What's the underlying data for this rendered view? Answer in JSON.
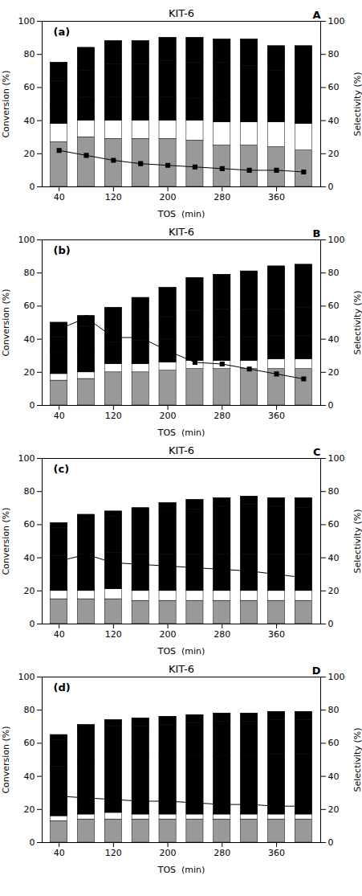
{
  "chart_data": [
    {
      "type": "bar",
      "stacked": true,
      "grid": false,
      "title": "KIT-6",
      "xlabel": "TOS  (min)",
      "ylabel": "Conversion (%)",
      "y2label": "Selectivity (%)",
      "annotations": [
        "(a)",
        "A"
      ],
      "x": [
        40,
        80,
        120,
        160,
        200,
        240,
        280,
        320,
        360,
        400
      ],
      "xlim": [
        15,
        425
      ],
      "xticks": [
        40,
        120,
        200,
        280,
        360
      ],
      "ylim": [
        0,
        100
      ],
      "yticks": [
        0,
        20,
        40,
        60,
        80,
        100
      ],
      "y2lim": [
        0,
        100
      ],
      "y2ticks": [
        0,
        20,
        40,
        60,
        80,
        100
      ],
      "series": [
        {
          "color": "#999999",
          "values": [
            27,
            30,
            29,
            29,
            29,
            28,
            25,
            25,
            24,
            22
          ]
        },
        {
          "color": "#ffffff",
          "values": [
            11,
            10,
            11,
            11,
            11,
            12,
            14,
            14,
            15,
            16
          ]
        },
        {
          "color": "#cccccc",
          "values": [
            12,
            14,
            14,
            14,
            14,
            13,
            13,
            12,
            11,
            11
          ]
        },
        {
          "color": "#d8d8d8",
          "values": [
            14,
            16,
            20,
            20,
            22,
            22,
            23,
            22,
            20,
            18
          ]
        },
        {
          "color": "#e0e0e0",
          "values": [
            11,
            14,
            14,
            14,
            14,
            15,
            14,
            16,
            15,
            18
          ]
        },
        {
          "type": "line",
          "axis": "y2",
          "color": "black",
          "marker": "square",
          "line_style": "solid",
          "values": [
            22,
            19,
            16,
            14,
            13,
            12,
            11,
            10,
            10,
            9
          ]
        }
      ]
    },
    {
      "type": "bar",
      "stacked": true,
      "grid": false,
      "title": "KIT-6",
      "xlabel": "TOS  (min)",
      "ylabel": "Conversion (%)",
      "y2label": "Selectivity (%)",
      "annotations": [
        "(b)",
        "B"
      ],
      "x": [
        40,
        80,
        120,
        160,
        200,
        240,
        280,
        320,
        360,
        400
      ],
      "xlim": [
        15,
        425
      ],
      "xticks": [
        40,
        120,
        200,
        280,
        360
      ],
      "ylim": [
        0,
        100
      ],
      "yticks": [
        0,
        20,
        40,
        60,
        80,
        100
      ],
      "y2lim": [
        0,
        100
      ],
      "y2ticks": [
        0,
        20,
        40,
        60,
        80,
        100
      ],
      "series": [
        {
          "color": "#999999",
          "values": [
            15,
            16,
            20,
            20,
            21,
            22,
            22,
            22,
            22,
            22
          ]
        },
        {
          "color": "#ffffff",
          "values": [
            4,
            4,
            5,
            5,
            5,
            5,
            5,
            5,
            6,
            6
          ]
        },
        {
          "color": "#cccccc",
          "values": [
            13,
            14,
            13,
            14,
            14,
            14,
            14,
            14,
            14,
            14
          ]
        },
        {
          "color": "#d8d8d8",
          "values": [
            9,
            14,
            12,
            11,
            13,
            16,
            17,
            17,
            16,
            17
          ]
        },
        {
          "color": "#e0e0e0",
          "values": [
            9,
            6,
            9,
            15,
            18,
            20,
            21,
            23,
            26,
            26
          ]
        },
        {
          "type": "line",
          "axis": "y2",
          "color": "black",
          "marker": "square",
          "line_style": "solid",
          "values": [
            46,
            53,
            41,
            41,
            33,
            26,
            25,
            22,
            19,
            16
          ]
        }
      ]
    },
    {
      "type": "bar",
      "stacked": true,
      "grid": false,
      "title": "KIT-6",
      "xlabel": "TOS  (min)",
      "ylabel": "Conversion (%)",
      "y2label": "Selectivity (%)",
      "annotations": [
        "(c)",
        "C"
      ],
      "x": [
        40,
        80,
        120,
        160,
        200,
        240,
        280,
        320,
        360,
        400
      ],
      "xlim": [
        15,
        425
      ],
      "xticks": [
        40,
        120,
        200,
        280,
        360
      ],
      "ylim": [
        0,
        100
      ],
      "yticks": [
        0,
        20,
        40,
        60,
        80,
        100
      ],
      "y2lim": [
        0,
        100
      ],
      "y2ticks": [
        0,
        20,
        40,
        60,
        80,
        100
      ],
      "series": [
        {
          "color": "#999999",
          "values": [
            15,
            15,
            15,
            14,
            14,
            14,
            14,
            14,
            14,
            14
          ]
        },
        {
          "color": "#ffffff",
          "values": [
            5,
            5,
            6,
            6,
            6,
            6,
            6,
            6,
            6,
            6
          ]
        },
        {
          "color": "#cccccc",
          "values": [
            21,
            22,
            22,
            22,
            22,
            22,
            22,
            22,
            22,
            22
          ]
        },
        {
          "color": "#d8d8d8",
          "values": [
            17,
            21,
            22,
            24,
            26,
            27,
            29,
            30,
            29,
            28
          ]
        },
        {
          "color": "#e0e0e0",
          "values": [
            3,
            3,
            3,
            4,
            5,
            6,
            5,
            5,
            5,
            6
          ]
        },
        {
          "type": "line",
          "axis": "y2",
          "color": "black",
          "marker": "square",
          "line_style": "solid",
          "values": [
            38,
            42,
            37,
            36,
            35,
            34,
            33,
            32,
            30,
            28
          ]
        }
      ]
    },
    {
      "type": "bar",
      "stacked": true,
      "grid": false,
      "title": "KIT-6",
      "xlabel": "TOS  (min)",
      "ylabel": "Conversion (%)",
      "y2label": "Selectivity (%)",
      "annotations": [
        "(d)",
        "D"
      ],
      "x": [
        40,
        80,
        120,
        160,
        200,
        240,
        280,
        320,
        360,
        400
      ],
      "xlim": [
        15,
        425
      ],
      "xticks": [
        40,
        120,
        200,
        280,
        360
      ],
      "ylim": [
        0,
        100
      ],
      "yticks": [
        0,
        20,
        40,
        60,
        80,
        100
      ],
      "y2lim": [
        0,
        100
      ],
      "y2ticks": [
        0,
        20,
        40,
        60,
        80,
        100
      ],
      "series": [
        {
          "color": "#999999",
          "values": [
            13,
            14,
            14,
            14,
            14,
            14,
            14,
            14,
            14,
            14
          ]
        },
        {
          "color": "#ffffff",
          "values": [
            3,
            3,
            4,
            3,
            3,
            3,
            3,
            3,
            3,
            3
          ]
        },
        {
          "color": "#cccccc",
          "values": [
            30,
            32,
            33,
            34,
            34,
            35,
            35,
            35,
            36,
            36
          ]
        },
        {
          "color": "#d8d8d8",
          "values": [
            16,
            18,
            19,
            19,
            20,
            20,
            21,
            21,
            21,
            21
          ]
        },
        {
          "color": "#e0e0e0",
          "values": [
            3,
            4,
            4,
            5,
            5,
            5,
            5,
            5,
            5,
            5
          ]
        },
        {
          "type": "line",
          "axis": "y2",
          "color": "black",
          "marker": "square",
          "line_style": "solid",
          "values": [
            28,
            27,
            26,
            25,
            25,
            24,
            23,
            23,
            22,
            22
          ]
        }
      ]
    }
  ]
}
